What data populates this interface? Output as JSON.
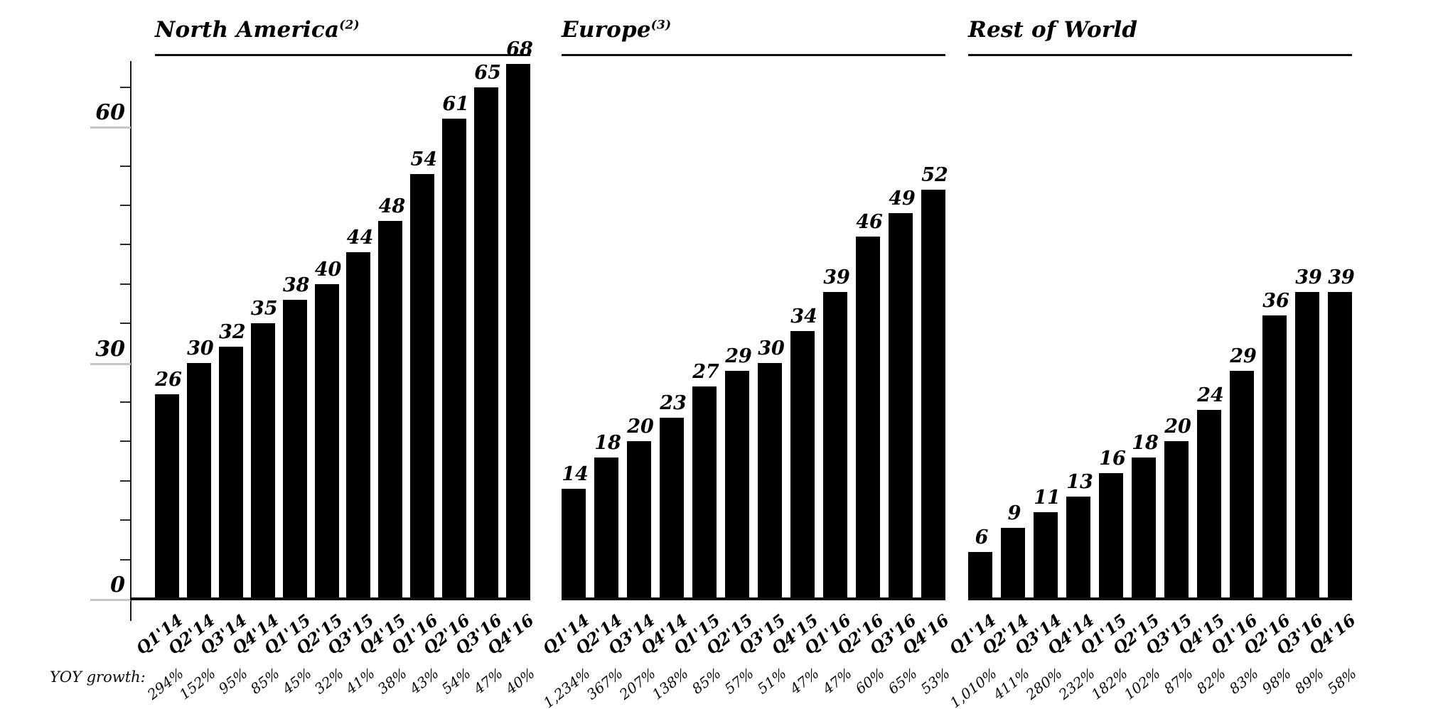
{
  "page": {
    "background": "#ffffff",
    "bar_color": "#000000",
    "axis_color": "#1b1b1b",
    "stub_color": "#c6c6c6"
  },
  "yoy_row_label": "YOY growth:",
  "y_axis": {
    "labeled_ticks": [
      0,
      30,
      60
    ],
    "minor_tick_step": 5,
    "minor_tick_max": 65,
    "max_value": 68
  },
  "chart_data": [
    {
      "type": "bar",
      "title": "North America",
      "title_superscript": "(2)",
      "categories": [
        "Q1'14",
        "Q2'14",
        "Q3'14",
        "Q4'14",
        "Q1'15",
        "Q2'15",
        "Q3'15",
        "Q4'15",
        "Q1'16",
        "Q2'16",
        "Q3'16",
        "Q4'16"
      ],
      "values": [
        26,
        30,
        32,
        35,
        38,
        40,
        44,
        48,
        54,
        61,
        65,
        68
      ],
      "yoy_growth": [
        "294%",
        "152%",
        "95%",
        "85%",
        "45%",
        "32%",
        "41%",
        "38%",
        "43%",
        "54%",
        "47%",
        "40%"
      ],
      "xlabel": "",
      "ylabel": "",
      "ylim": [
        0,
        70
      ],
      "grid": false,
      "legend": "none"
    },
    {
      "type": "bar",
      "title": "Europe",
      "title_superscript": "(3)",
      "categories": [
        "Q1'14",
        "Q2'14",
        "Q3'14",
        "Q4'14",
        "Q1'15",
        "Q2'15",
        "Q3'15",
        "Q4'15",
        "Q1'16",
        "Q2'16",
        "Q3'16",
        "Q4'16"
      ],
      "values": [
        14,
        18,
        20,
        23,
        27,
        29,
        30,
        34,
        39,
        46,
        49,
        52
      ],
      "yoy_growth": [
        "1,234%",
        "367%",
        "207%",
        "138%",
        "85%",
        "57%",
        "51%",
        "47%",
        "47%",
        "60%",
        "65%",
        "53%"
      ],
      "xlabel": "",
      "ylabel": "",
      "ylim": [
        0,
        70
      ],
      "grid": false,
      "legend": "none"
    },
    {
      "type": "bar",
      "title": "Rest of World",
      "title_superscript": "",
      "categories": [
        "Q1'14",
        "Q2'14",
        "Q3'14",
        "Q4'14",
        "Q1'15",
        "Q2'15",
        "Q3'15",
        "Q4'15",
        "Q1'16",
        "Q2'16",
        "Q3'16",
        "Q4'16"
      ],
      "values": [
        6,
        9,
        11,
        13,
        16,
        18,
        20,
        24,
        29,
        36,
        39,
        39
      ],
      "yoy_growth": [
        "1,010%",
        "411%",
        "280%",
        "232%",
        "182%",
        "102%",
        "87%",
        "82%",
        "83%",
        "98%",
        "89%",
        "58%"
      ],
      "xlabel": "",
      "ylabel": "",
      "ylim": [
        0,
        70
      ],
      "grid": false,
      "legend": "none"
    }
  ]
}
